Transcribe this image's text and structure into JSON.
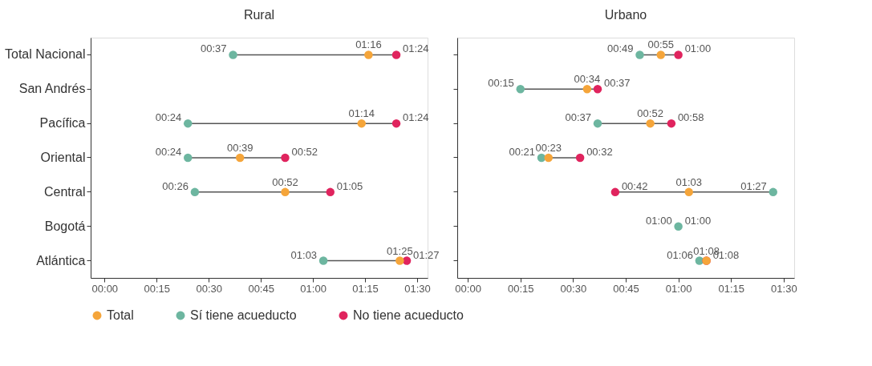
{
  "chart_data": [
    {
      "type": "scatter",
      "title": "Rural",
      "categories": [
        "Total Nacional",
        "San Andrés",
        "Pacífica",
        "Oriental",
        "Central",
        "Bogotá",
        "Atlántica"
      ],
      "orientation": "horizontal",
      "marker": "circle",
      "legend": "bottom",
      "grid": false,
      "xlim": [
        -4,
        93
      ],
      "xticks": [
        {
          "value": 0,
          "label": "00:00"
        },
        {
          "value": 15,
          "label": "00:15"
        },
        {
          "value": 30,
          "label": "00:30"
        },
        {
          "value": 45,
          "label": "00:45"
        },
        {
          "value": 60,
          "label": "01:00"
        },
        {
          "value": 75,
          "label": "01:15"
        },
        {
          "value": 90,
          "label": "01:30"
        }
      ],
      "series": [
        {
          "name": "Sí tiene acueducto",
          "color": "#6db6a0",
          "values": [
            37,
            null,
            24,
            24,
            26,
            null,
            63
          ],
          "value_labels": [
            "00:37",
            null,
            "00:24",
            "00:24",
            "00:26",
            null,
            "01:03"
          ]
        },
        {
          "name": "No tiene acueducto",
          "color": "#e0245e",
          "values": [
            84,
            null,
            84,
            52,
            65,
            null,
            87
          ],
          "value_labels": [
            "01:24",
            null,
            "01:24",
            "00:52",
            "01:05",
            null,
            "01:27"
          ]
        },
        {
          "name": "Total",
          "color": "#f5a53a",
          "values": [
            76,
            null,
            74,
            39,
            52,
            null,
            85
          ],
          "value_labels": [
            "01:16",
            null,
            "01:14",
            "00:39",
            "00:52",
            null,
            "01:25"
          ]
        }
      ]
    },
    {
      "type": "scatter",
      "title": "Urbano",
      "categories": [
        "Total Nacional",
        "San Andrés",
        "Pacífica",
        "Oriental",
        "Central",
        "Bogotá",
        "Atlántica"
      ],
      "orientation": "horizontal",
      "marker": "circle",
      "grid": false,
      "tick_labels": "x",
      "xlim": [
        -3,
        93
      ],
      "xticks": [
        {
          "value": 0,
          "label": "00:00"
        },
        {
          "value": 15,
          "label": "00:15"
        },
        {
          "value": 30,
          "label": "00:30"
        },
        {
          "value": 45,
          "label": "00:45"
        },
        {
          "value": 60,
          "label": "01:00"
        },
        {
          "value": 75,
          "label": "01:15"
        },
        {
          "value": 90,
          "label": "01:30"
        }
      ],
      "annotations": [
        {
          "text": "01:00",
          "x": 60,
          "y": "Bogotá"
        }
      ],
      "series": [
        {
          "color": "#6db6a0",
          "values": [
            49,
            15,
            37,
            21,
            87,
            60,
            66
          ],
          "value_labels": [
            "00:49",
            "00:15",
            "00:37",
            "00:21",
            "01:27",
            "01:00",
            "01:06"
          ]
        },
        {
          "color": "#e0245e",
          "values": [
            60,
            37,
            58,
            32,
            42,
            null,
            68
          ],
          "value_labels": [
            "01:00",
            "00:37",
            "00:58",
            "00:32",
            "00:42",
            null,
            "01:08"
          ]
        },
        {
          "color": "#f5a53a",
          "values": [
            55,
            34,
            52,
            23,
            63,
            null,
            68
          ],
          "value_labels": [
            "00:55",
            "00:34",
            "00:52",
            "00:23",
            "01:03",
            null,
            "01:08"
          ]
        }
      ]
    }
  ]
}
